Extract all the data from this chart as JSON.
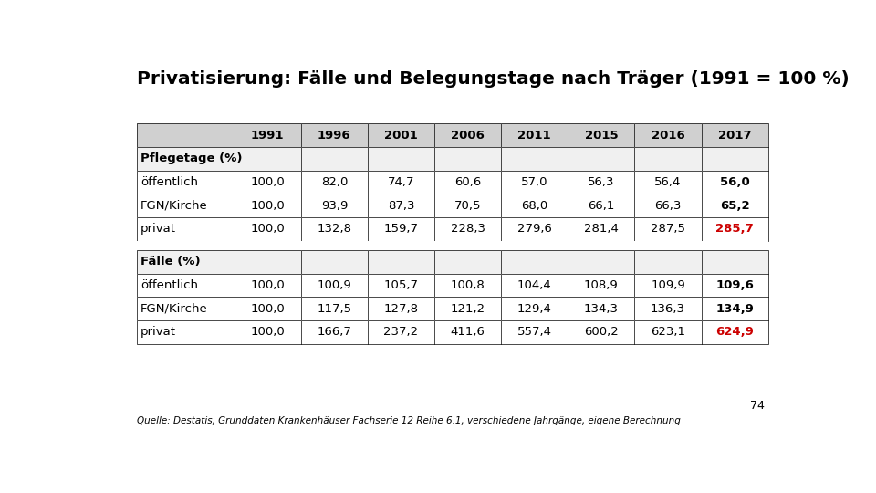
{
  "title": "Privatisierung: Fälle und Belegungstage nach Träger (1991 = 100 %)",
  "columns": [
    "",
    "1991",
    "1996",
    "2001",
    "2006",
    "2011",
    "2015",
    "2016",
    "2017"
  ],
  "section1_header": "Pflegetage (%)",
  "section1_rows": [
    [
      "öffentlich",
      "100,0",
      "82,0",
      "74,7",
      "60,6",
      "57,0",
      "56,3",
      "56,4",
      "56,0"
    ],
    [
      "FGN/Kirche",
      "100,0",
      "93,9",
      "87,3",
      "70,5",
      "68,0",
      "66,1",
      "66,3",
      "65,2"
    ],
    [
      "privat",
      "100,0",
      "132,8",
      "159,7",
      "228,3",
      "279,6",
      "281,4",
      "287,5",
      "285,7"
    ]
  ],
  "section2_header": "Fälle (%)",
  "section2_rows": [
    [
      "öffentlich",
      "100,0",
      "100,9",
      "105,7",
      "100,8",
      "104,4",
      "108,9",
      "109,9",
      "109,6"
    ],
    [
      "FGN/Kirche",
      "100,0",
      "117,5",
      "127,8",
      "121,2",
      "129,4",
      "134,3",
      "136,3",
      "134,9"
    ],
    [
      "privat",
      "100,0",
      "166,7",
      "237,2",
      "411,6",
      "557,4",
      "600,2",
      "623,1",
      "624,9"
    ]
  ],
  "red_color": "#cc0000",
  "black_color": "#000000",
  "header_bg": "#d0d0d0",
  "section_header_bg": "#f0f0f0",
  "border_color": "#000000",
  "source_text": "Quelle: Destatis, Grunddaten Krankenhäuser Fachserie 12 Reihe 6.1, verschiedene Jahrgänge, eigene Berechnung",
  "page_number": "74",
  "bg_color": "#ffffff"
}
